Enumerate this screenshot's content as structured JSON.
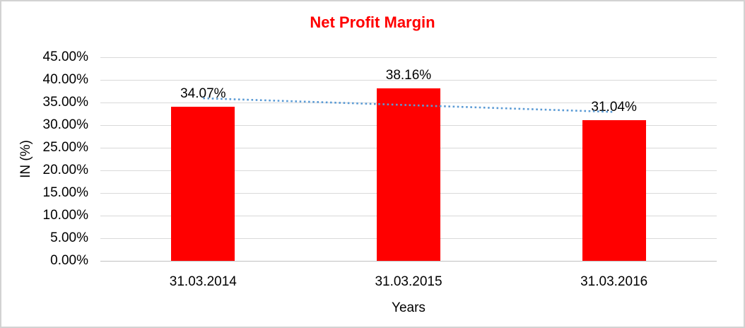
{
  "chart_data": {
    "type": "bar",
    "title": "Net Profit Margin",
    "title_color": "#FF0000",
    "categories": [
      "31.03.2014",
      "31.03.2015",
      "31.03.2016"
    ],
    "values": [
      34.07,
      38.16,
      31.04
    ],
    "data_labels": [
      "34.07%",
      "38.16%",
      "31.04%"
    ],
    "xlabel": "Years",
    "ylabel": "IN (%)",
    "ylim": [
      0,
      45
    ],
    "ytick_step": 5,
    "ytick_labels": [
      "0.00%",
      "5.00%",
      "10.00%",
      "15.00%",
      "20.00%",
      "25.00%",
      "30.00%",
      "35.00%",
      "40.00%",
      "45.00%"
    ],
    "grid": true,
    "legend": "none",
    "bar_color": "#FF0000",
    "trendline": {
      "type": "linear",
      "style": "dotted",
      "color": "#5B9BD5",
      "start_value": 35.94,
      "end_value": 32.91
    },
    "colors": {
      "gridline": "#D9D9D9",
      "axis_line": "#C0C0C0",
      "text": "#000000",
      "border": "#D2D2D2",
      "background": "#FFFFFF"
    }
  }
}
